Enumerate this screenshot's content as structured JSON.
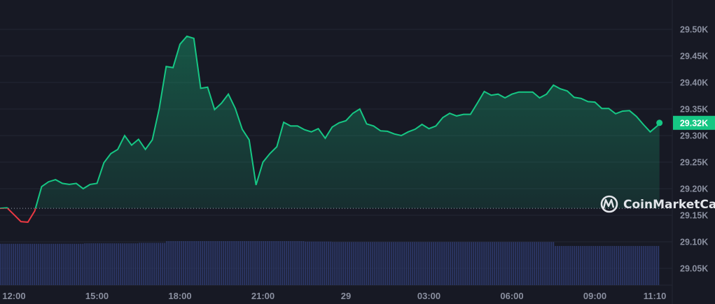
{
  "watermark": "CoinMarketCap",
  "colors": {
    "background": "#171924",
    "up": "#16c784",
    "down": "#ea3943",
    "volume": "#2c3766",
    "grid": "#232633",
    "axis_text": "#8a8f9f"
  },
  "chart_data": {
    "type": "area",
    "title": "",
    "xlabel": "",
    "ylabel": "",
    "y_axis_position": "right",
    "ylim": [
      29030,
      29530
    ],
    "y_ticks": [
      "29.50K",
      "29.45K",
      "29.40K",
      "29.35K",
      "29.30K",
      "29.25K",
      "29.20K",
      "29.15K",
      "29.10K",
      "29.05K"
    ],
    "y_tick_values": [
      29500,
      29450,
      29400,
      29350,
      29300,
      29250,
      29200,
      29150,
      29100,
      29050
    ],
    "x_ticks": [
      {
        "label": "12:00",
        "time": "12:00"
      },
      {
        "label": "15:00",
        "time": "15:00"
      },
      {
        "label": "18:00",
        "time": "18:00"
      },
      {
        "label": "21:00",
        "time": "21:00"
      },
      {
        "label": "29",
        "time": "00:00"
      },
      {
        "label": "03:00",
        "time": "03:00"
      },
      {
        "label": "06:00",
        "time": "06:00"
      },
      {
        "label": "09:00",
        "time": "09:00"
      },
      {
        "label": "11:10",
        "time": "11:10"
      }
    ],
    "grid": true,
    "reference_price": 29163,
    "current_price_label": "29.32K",
    "series": [
      {
        "points": [
          [
            "11:30",
            29163
          ],
          [
            "11:45",
            29164
          ],
          [
            "12:00",
            29151
          ],
          [
            "12:15",
            29138
          ],
          [
            "12:30",
            29137
          ],
          [
            "12:45",
            29158
          ],
          [
            "13:00",
            29204
          ],
          [
            "13:15",
            29213
          ],
          [
            "13:30",
            29217
          ],
          [
            "13:45",
            29210
          ],
          [
            "14:00",
            29208
          ],
          [
            "14:15",
            29210
          ],
          [
            "14:30",
            29200
          ],
          [
            "14:45",
            29208
          ],
          [
            "15:00",
            29210
          ],
          [
            "15:15",
            29249
          ],
          [
            "15:30",
            29266
          ],
          [
            "15:45",
            29274
          ],
          [
            "16:00",
            29300
          ],
          [
            "16:15",
            29282
          ],
          [
            "16:30",
            29293
          ],
          [
            "16:45",
            29274
          ],
          [
            "17:00",
            29292
          ],
          [
            "17:15",
            29351
          ],
          [
            "17:30",
            29430
          ],
          [
            "17:45",
            29428
          ],
          [
            "18:00",
            29472
          ],
          [
            "18:15",
            29487
          ],
          [
            "18:30",
            29483
          ],
          [
            "18:45",
            29389
          ],
          [
            "19:00",
            29391
          ],
          [
            "19:15",
            29349
          ],
          [
            "19:30",
            29361
          ],
          [
            "19:45",
            29378
          ],
          [
            "20:00",
            29351
          ],
          [
            "20:15",
            29312
          ],
          [
            "20:30",
            29292
          ],
          [
            "20:45",
            29207
          ],
          [
            "21:00",
            29250
          ],
          [
            "21:15",
            29266
          ],
          [
            "21:30",
            29279
          ],
          [
            "21:45",
            29325
          ],
          [
            "22:00",
            29318
          ],
          [
            "22:15",
            29318
          ],
          [
            "22:30",
            29311
          ],
          [
            "22:45",
            29307
          ],
          [
            "23:00",
            29313
          ],
          [
            "23:15",
            29295
          ],
          [
            "23:30",
            29316
          ],
          [
            "23:45",
            29324
          ],
          [
            "00:00",
            29328
          ],
          [
            "00:15",
            29342
          ],
          [
            "00:30",
            29350
          ],
          [
            "00:45",
            29322
          ],
          [
            "01:00",
            29318
          ],
          [
            "01:15",
            29309
          ],
          [
            "01:30",
            29308
          ],
          [
            "01:45",
            29303
          ],
          [
            "02:00",
            29300
          ],
          [
            "02:15",
            29307
          ],
          [
            "02:30",
            29312
          ],
          [
            "02:45",
            29321
          ],
          [
            "03:00",
            29313
          ],
          [
            "03:15",
            29318
          ],
          [
            "03:30",
            29334
          ],
          [
            "03:45",
            29342
          ],
          [
            "04:00",
            29337
          ],
          [
            "04:15",
            29340
          ],
          [
            "04:30",
            29340
          ],
          [
            "04:45",
            29361
          ],
          [
            "05:00",
            29383
          ],
          [
            "05:15",
            29376
          ],
          [
            "05:30",
            29378
          ],
          [
            "05:45",
            29371
          ],
          [
            "06:00",
            29378
          ],
          [
            "06:15",
            29382
          ],
          [
            "06:30",
            29382
          ],
          [
            "06:45",
            29382
          ],
          [
            "07:00",
            29371
          ],
          [
            "07:15",
            29378
          ],
          [
            "07:30",
            29395
          ],
          [
            "07:45",
            29388
          ],
          [
            "08:00",
            29384
          ],
          [
            "08:15",
            29372
          ],
          [
            "08:30",
            29370
          ],
          [
            "08:45",
            29364
          ],
          [
            "09:00",
            29363
          ],
          [
            "09:15",
            29351
          ],
          [
            "09:30",
            29351
          ],
          [
            "09:45",
            29341
          ],
          [
            "10:00",
            29346
          ],
          [
            "10:15",
            29347
          ],
          [
            "10:30",
            29336
          ],
          [
            "10:45",
            29321
          ],
          [
            "11:00",
            29307
          ],
          [
            "11:15",
            29318
          ],
          [
            "11:20",
            29324
          ]
        ]
      }
    ],
    "volume_relative_hourly": [
      0.94,
      0.94,
      0.94,
      0.95,
      0.95,
      0.96,
      1.0,
      1.0,
      1.0,
      1.0,
      1.0,
      0.99,
      0.98,
      0.98,
      0.98,
      0.98,
      0.98,
      0.98,
      0.98,
      0.98,
      0.89,
      0.89,
      0.89,
      0.89
    ]
  }
}
